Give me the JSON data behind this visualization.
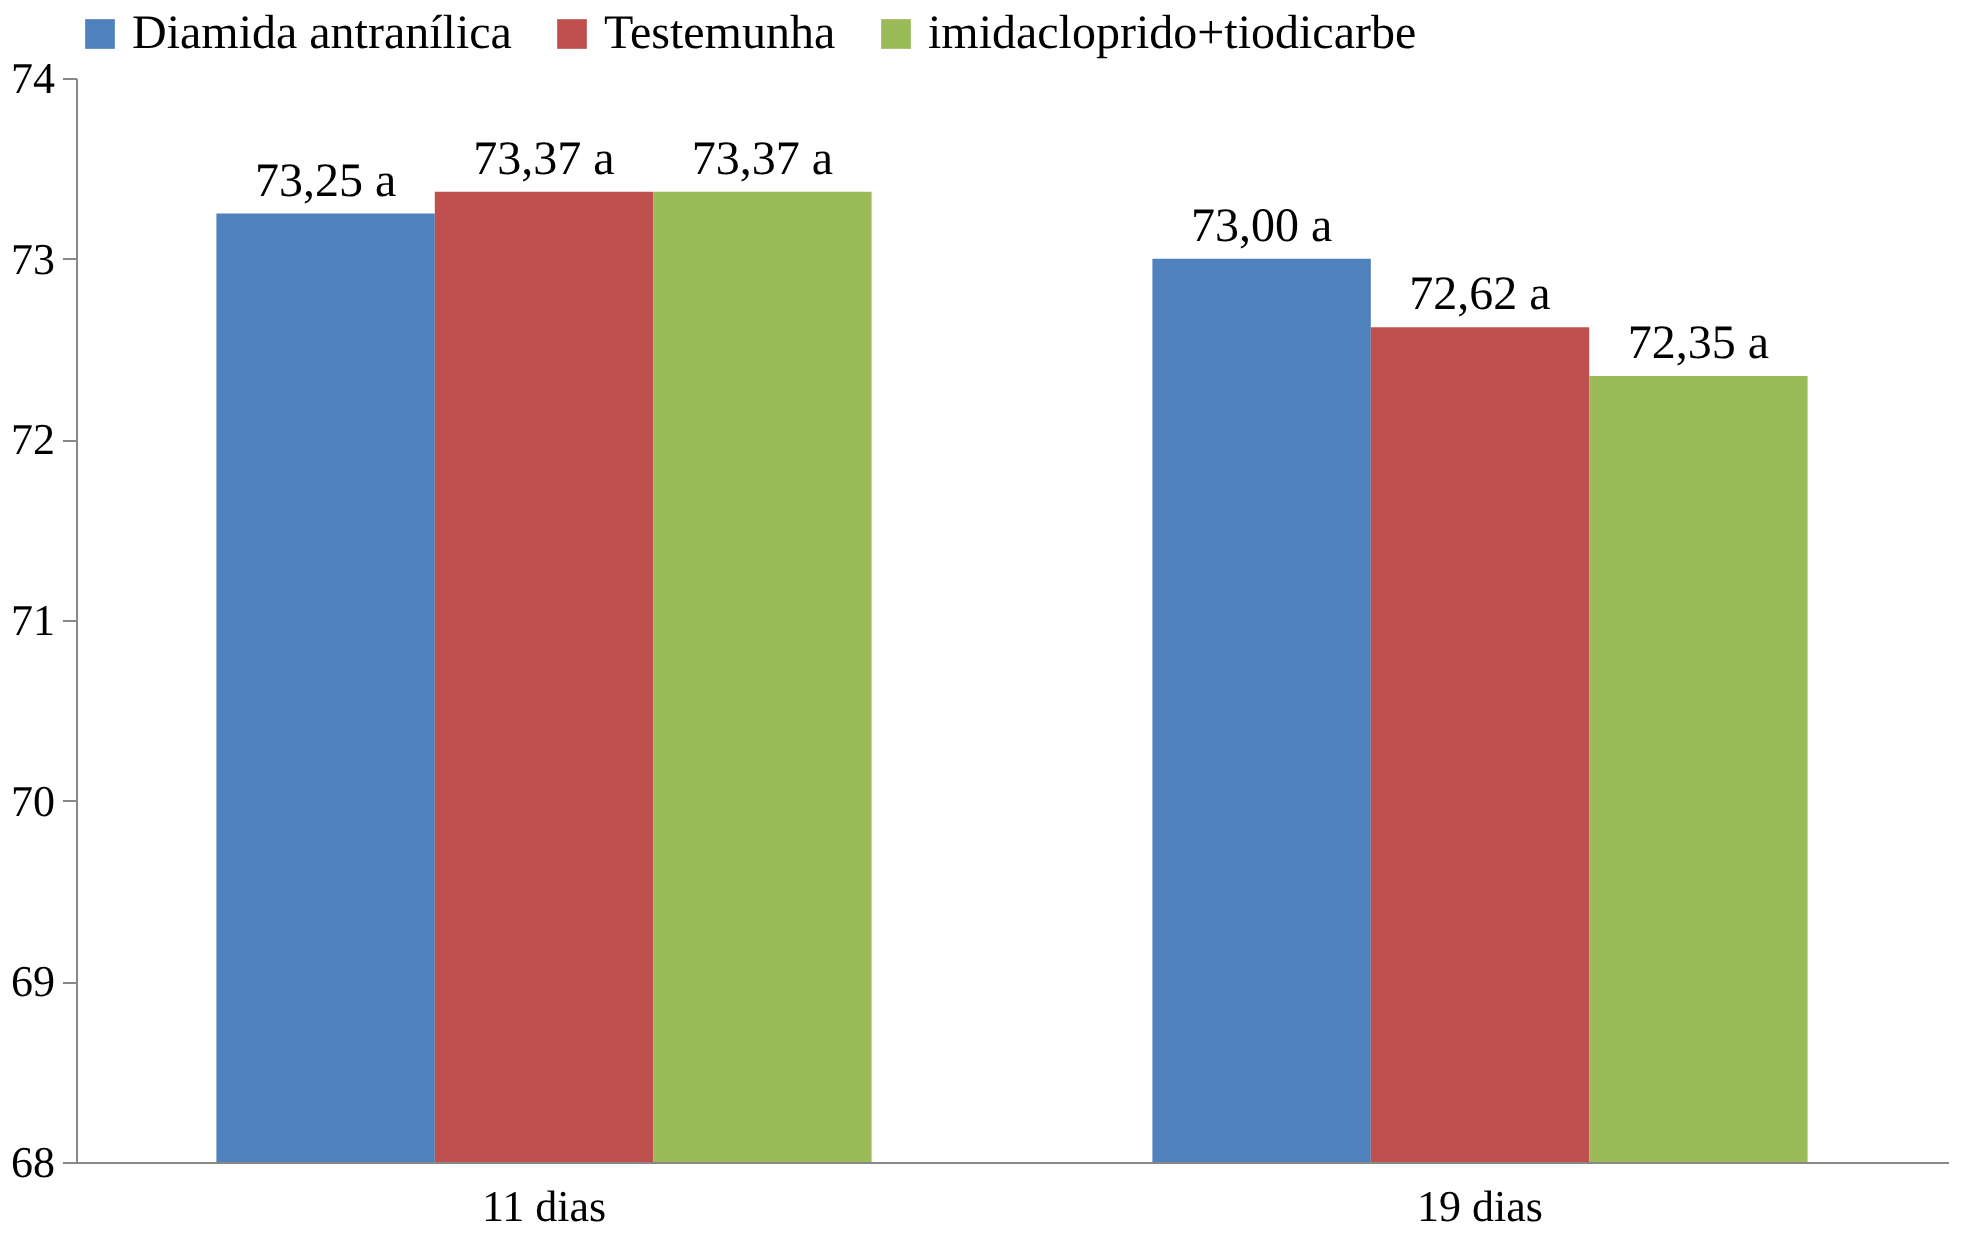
{
  "chart_data": {
    "type": "bar",
    "categories": [
      "11 dias",
      "19 dias"
    ],
    "series": [
      {
        "name": "Diamida antranílica",
        "color": "#4f81bd",
        "values": [
          73.25,
          73.0
        ],
        "value_labels": [
          "73,25 a",
          "73,00 a"
        ]
      },
      {
        "name": "Testemunha",
        "color": "#c0504d",
        "values": [
          73.37,
          72.62
        ],
        "value_labels": [
          "73,37 a",
          "72,62 a"
        ]
      },
      {
        "name": "imidacloprido+tiodicarbe",
        "color": "#9bbb59",
        "values": [
          73.37,
          72.35
        ],
        "value_labels": [
          "73,37 a",
          "72,35 a"
        ]
      }
    ],
    "ylim": [
      68,
      74
    ],
    "yticks": [
      68,
      69,
      70,
      71,
      72,
      73,
      74
    ],
    "grid": false,
    "legend": "top"
  }
}
